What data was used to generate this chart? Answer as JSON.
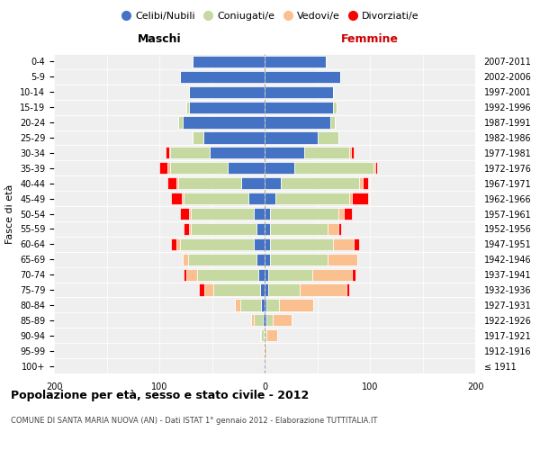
{
  "age_groups": [
    "100+",
    "95-99",
    "90-94",
    "85-89",
    "80-84",
    "75-79",
    "70-74",
    "65-69",
    "60-64",
    "55-59",
    "50-54",
    "45-49",
    "40-44",
    "35-39",
    "30-34",
    "25-29",
    "20-24",
    "15-19",
    "10-14",
    "5-9",
    "0-4"
  ],
  "birth_years": [
    "≤ 1911",
    "1912-1916",
    "1917-1921",
    "1922-1926",
    "1927-1931",
    "1932-1936",
    "1937-1941",
    "1942-1946",
    "1947-1951",
    "1952-1956",
    "1957-1961",
    "1962-1966",
    "1967-1971",
    "1972-1976",
    "1977-1981",
    "1982-1986",
    "1987-1991",
    "1992-1996",
    "1997-2001",
    "2002-2006",
    "2007-2011"
  ],
  "maschi": {
    "celibi": [
      0,
      0,
      1,
      2,
      3,
      4,
      6,
      8,
      10,
      8,
      10,
      15,
      22,
      35,
      52,
      58,
      78,
      72,
      72,
      80,
      68
    ],
    "coniugati": [
      0,
      1,
      2,
      8,
      20,
      45,
      58,
      65,
      70,
      62,
      60,
      62,
      60,
      55,
      38,
      10,
      4,
      2,
      0,
      0,
      0
    ],
    "vedovi": [
      0,
      0,
      1,
      3,
      5,
      8,
      10,
      5,
      4,
      2,
      2,
      2,
      2,
      2,
      1,
      0,
      0,
      0,
      0,
      0,
      0
    ],
    "divorziati": [
      0,
      0,
      0,
      0,
      0,
      5,
      3,
      0,
      5,
      5,
      8,
      10,
      8,
      8,
      3,
      0,
      0,
      0,
      0,
      0,
      0
    ]
  },
  "femmine": {
    "nubili": [
      0,
      0,
      0,
      2,
      2,
      3,
      3,
      5,
      5,
      5,
      5,
      10,
      15,
      28,
      38,
      50,
      62,
      65,
      65,
      72,
      58
    ],
    "coniugate": [
      0,
      0,
      2,
      6,
      12,
      30,
      42,
      55,
      60,
      55,
      65,
      70,
      75,
      75,
      42,
      20,
      5,
      3,
      0,
      0,
      0
    ],
    "vedove": [
      0,
      2,
      10,
      18,
      32,
      45,
      38,
      28,
      20,
      10,
      5,
      3,
      3,
      2,
      2,
      0,
      0,
      0,
      0,
      0,
      0
    ],
    "divorziate": [
      0,
      0,
      0,
      0,
      0,
      2,
      3,
      0,
      5,
      3,
      8,
      15,
      5,
      2,
      3,
      0,
      0,
      0,
      0,
      0,
      0
    ]
  },
  "colors": {
    "celibi": "#4472C4",
    "coniugati": "#C5D9A0",
    "vedovi": "#FAC090",
    "divorziati": "#FF0000"
  },
  "legend_labels": [
    "Celibi/Nubili",
    "Coniugati/e",
    "Vedovi/e",
    "Divorziati/e"
  ],
  "legend_colors": [
    "#4472C4",
    "#C5D9A0",
    "#FAC090",
    "#FF0000"
  ],
  "maschi_label": "Maschi",
  "femmine_label": "Femmine",
  "ylabel_left": "Fasce di età",
  "title": "Popolazione per età, sesso e stato civile - 2012",
  "subtitle": "COMUNE DI SANTA MARIA NUOVA (AN) - Dati ISTAT 1° gennaio 2012 - Elaborazione TUTTITALIA.IT",
  "xlim": 200,
  "bg_color": "#efefef",
  "grid_color": "#ffffff",
  "center_line_color": "#aaaaaa"
}
